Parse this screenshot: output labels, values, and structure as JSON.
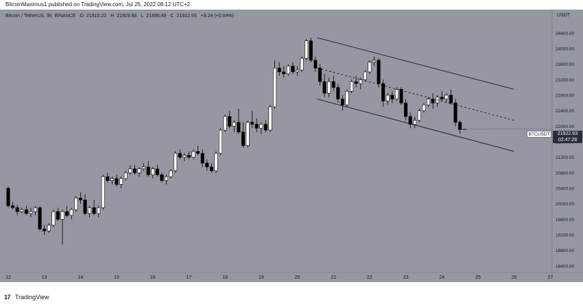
{
  "header": {
    "publish_text": "BitcoinMaximus1 published on TradingView.com, Jul 25, 2022 08:12 UTC+2"
  },
  "symbol_info": {
    "name": "Bitcoin / TetherUS, 3h, BINANCE",
    "open": "21915.22",
    "high": "21929.86",
    "low": "21895.49",
    "close": "21922.93",
    "change": "+9.24 (+0.04%)"
  },
  "price_axis": {
    "currency": "USDT",
    "last_price": "21922.93",
    "countdown": "02:47:28",
    "symbol_tag": "BTCUSDT"
  },
  "footer": {
    "logo_text": "17",
    "brand": "TradingView"
  },
  "chart_data": {
    "type": "candlestick",
    "x_ticks": [
      "12",
      "13",
      "14",
      "15",
      "16",
      "17",
      "18",
      "19",
      "20",
      "21",
      "22",
      "23",
      "24",
      "25",
      "26",
      "27"
    ],
    "y_ticks": [
      18400,
      18800,
      19200,
      19600,
      20000,
      20400,
      20800,
      21200,
      21600,
      22000,
      22400,
      22800,
      23200,
      23600,
      24000,
      24400
    ],
    "ylim": [
      18300,
      24900
    ],
    "xlim": [
      12,
      27.05
    ],
    "candles": [
      {
        "t": 12.0,
        "o": 20400,
        "h": 20450,
        "l": 19900,
        "c": 19950
      },
      {
        "t": 12.125,
        "o": 19950,
        "h": 20050,
        "l": 19850,
        "c": 19900
      },
      {
        "t": 12.25,
        "o": 19900,
        "h": 19980,
        "l": 19700,
        "c": 19800
      },
      {
        "t": 12.375,
        "o": 19800,
        "h": 19900,
        "l": 19750,
        "c": 19850
      },
      {
        "t": 12.5,
        "o": 19850,
        "h": 19950,
        "l": 19720,
        "c": 19750
      },
      {
        "t": 12.625,
        "o": 19750,
        "h": 19900,
        "l": 19650,
        "c": 19800
      },
      {
        "t": 12.75,
        "o": 19800,
        "h": 19950,
        "l": 19700,
        "c": 19900
      },
      {
        "t": 12.875,
        "o": 19900,
        "h": 19950,
        "l": 19300,
        "c": 19350
      },
      {
        "t": 13.0,
        "o": 19350,
        "h": 19450,
        "l": 19200,
        "c": 19300
      },
      {
        "t": 13.125,
        "o": 19300,
        "h": 19500,
        "l": 19250,
        "c": 19450
      },
      {
        "t": 13.25,
        "o": 19450,
        "h": 19850,
        "l": 19400,
        "c": 19800
      },
      {
        "t": 13.375,
        "o": 19800,
        "h": 19900,
        "l": 19550,
        "c": 19600
      },
      {
        "t": 13.5,
        "o": 19600,
        "h": 19850,
        "l": 18950,
        "c": 19800
      },
      {
        "t": 13.625,
        "o": 19800,
        "h": 19950,
        "l": 19650,
        "c": 19700
      },
      {
        "t": 13.75,
        "o": 19700,
        "h": 19900,
        "l": 19600,
        "c": 19850
      },
      {
        "t": 13.875,
        "o": 19850,
        "h": 20200,
        "l": 19800,
        "c": 20150
      },
      {
        "t": 14.0,
        "o": 20150,
        "h": 20300,
        "l": 20000,
        "c": 20100
      },
      {
        "t": 14.125,
        "o": 20100,
        "h": 20250,
        "l": 19700,
        "c": 19750
      },
      {
        "t": 14.25,
        "o": 19750,
        "h": 19950,
        "l": 19650,
        "c": 19900
      },
      {
        "t": 14.375,
        "o": 19900,
        "h": 20100,
        "l": 19700,
        "c": 19750
      },
      {
        "t": 14.5,
        "o": 19750,
        "h": 19950,
        "l": 19650,
        "c": 19900
      },
      {
        "t": 14.625,
        "o": 19900,
        "h": 20750,
        "l": 19850,
        "c": 20700
      },
      {
        "t": 14.75,
        "o": 20700,
        "h": 20800,
        "l": 20550,
        "c": 20600
      },
      {
        "t": 14.875,
        "o": 20600,
        "h": 20700,
        "l": 20500,
        "c": 20650
      },
      {
        "t": 15.0,
        "o": 20650,
        "h": 20750,
        "l": 20450,
        "c": 20500
      },
      {
        "t": 15.125,
        "o": 20500,
        "h": 20700,
        "l": 20400,
        "c": 20650
      },
      {
        "t": 15.25,
        "o": 20650,
        "h": 20850,
        "l": 20600,
        "c": 20800
      },
      {
        "t": 15.375,
        "o": 20800,
        "h": 21000,
        "l": 20750,
        "c": 20900
      },
      {
        "t": 15.5,
        "o": 20900,
        "h": 21000,
        "l": 20750,
        "c": 20800
      },
      {
        "t": 15.625,
        "o": 20800,
        "h": 20950,
        "l": 20700,
        "c": 20900
      },
      {
        "t": 15.75,
        "o": 20900,
        "h": 21050,
        "l": 20850,
        "c": 20950
      },
      {
        "t": 15.875,
        "o": 20950,
        "h": 21100,
        "l": 20700,
        "c": 20750
      },
      {
        "t": 16.0,
        "o": 20750,
        "h": 20950,
        "l": 20650,
        "c": 20900
      },
      {
        "t": 16.125,
        "o": 20900,
        "h": 21000,
        "l": 20700,
        "c": 20750
      },
      {
        "t": 16.25,
        "o": 20750,
        "h": 20800,
        "l": 20550,
        "c": 20600
      },
      {
        "t": 16.375,
        "o": 20600,
        "h": 20750,
        "l": 20500,
        "c": 20700
      },
      {
        "t": 16.5,
        "o": 20700,
        "h": 20900,
        "l": 20650,
        "c": 20850
      },
      {
        "t": 16.625,
        "o": 20850,
        "h": 21350,
        "l": 20800,
        "c": 21300
      },
      {
        "t": 16.75,
        "o": 21300,
        "h": 21400,
        "l": 21150,
        "c": 21200
      },
      {
        "t": 16.875,
        "o": 21200,
        "h": 21300,
        "l": 21100,
        "c": 21250
      },
      {
        "t": 17.0,
        "o": 21250,
        "h": 21350,
        "l": 21150,
        "c": 21200
      },
      {
        "t": 17.125,
        "o": 21200,
        "h": 21400,
        "l": 21150,
        "c": 21350
      },
      {
        "t": 17.25,
        "o": 21350,
        "h": 21500,
        "l": 21250,
        "c": 21300
      },
      {
        "t": 17.375,
        "o": 21300,
        "h": 21400,
        "l": 20950,
        "c": 21050
      },
      {
        "t": 17.5,
        "o": 21050,
        "h": 21150,
        "l": 20850,
        "c": 20950
      },
      {
        "t": 17.625,
        "o": 20950,
        "h": 21050,
        "l": 20800,
        "c": 20850
      },
      {
        "t": 17.75,
        "o": 20850,
        "h": 21350,
        "l": 20800,
        "c": 21300
      },
      {
        "t": 17.875,
        "o": 21300,
        "h": 21950,
        "l": 21250,
        "c": 21900
      },
      {
        "t": 18.0,
        "o": 21900,
        "h": 22300,
        "l": 21850,
        "c": 22250
      },
      {
        "t": 18.125,
        "o": 22250,
        "h": 22400,
        "l": 21950,
        "c": 22000
      },
      {
        "t": 18.25,
        "o": 22000,
        "h": 22150,
        "l": 21850,
        "c": 22100
      },
      {
        "t": 18.375,
        "o": 22100,
        "h": 22450,
        "l": 21800,
        "c": 21850
      },
      {
        "t": 18.5,
        "o": 21850,
        "h": 22100,
        "l": 21450,
        "c": 21500
      },
      {
        "t": 18.625,
        "o": 21500,
        "h": 22150,
        "l": 21450,
        "c": 22100
      },
      {
        "t": 18.75,
        "o": 22100,
        "h": 22400,
        "l": 21950,
        "c": 22050
      },
      {
        "t": 18.875,
        "o": 22050,
        "h": 22200,
        "l": 21850,
        "c": 21950
      },
      {
        "t": 19.0,
        "o": 21950,
        "h": 22100,
        "l": 21800,
        "c": 22050
      },
      {
        "t": 19.125,
        "o": 22050,
        "h": 22150,
        "l": 21850,
        "c": 21900
      },
      {
        "t": 19.25,
        "o": 21900,
        "h": 22550,
        "l": 21850,
        "c": 22500
      },
      {
        "t": 19.375,
        "o": 22500,
        "h": 23700,
        "l": 22450,
        "c": 23500
      },
      {
        "t": 19.5,
        "o": 23500,
        "h": 23650,
        "l": 23300,
        "c": 23400
      },
      {
        "t": 19.625,
        "o": 23400,
        "h": 23550,
        "l": 23250,
        "c": 23350
      },
      {
        "t": 19.75,
        "o": 23350,
        "h": 23600,
        "l": 23300,
        "c": 23550
      },
      {
        "t": 19.875,
        "o": 23550,
        "h": 23650,
        "l": 23350,
        "c": 23400
      },
      {
        "t": 20.0,
        "o": 23400,
        "h": 23550,
        "l": 23300,
        "c": 23450
      },
      {
        "t": 20.125,
        "o": 23450,
        "h": 23800,
        "l": 23400,
        "c": 23750
      },
      {
        "t": 20.25,
        "o": 23750,
        "h": 24250,
        "l": 23700,
        "c": 24200
      },
      {
        "t": 20.375,
        "o": 24200,
        "h": 24280,
        "l": 23650,
        "c": 23700
      },
      {
        "t": 20.5,
        "o": 23700,
        "h": 23800,
        "l": 23400,
        "c": 23500
      },
      {
        "t": 20.625,
        "o": 23500,
        "h": 23600,
        "l": 23050,
        "c": 23150
      },
      {
        "t": 20.75,
        "o": 23150,
        "h": 23350,
        "l": 22750,
        "c": 22850
      },
      {
        "t": 20.875,
        "o": 22850,
        "h": 23250,
        "l": 22750,
        "c": 23150
      },
      {
        "t": 21.0,
        "o": 23150,
        "h": 23300,
        "l": 22900,
        "c": 23000
      },
      {
        "t": 21.125,
        "o": 23000,
        "h": 23100,
        "l": 22600,
        "c": 22700
      },
      {
        "t": 21.25,
        "o": 22700,
        "h": 22800,
        "l": 22400,
        "c": 22550
      },
      {
        "t": 21.375,
        "o": 22550,
        "h": 22950,
        "l": 22500,
        "c": 22900
      },
      {
        "t": 21.5,
        "o": 22900,
        "h": 23200,
        "l": 22850,
        "c": 23150
      },
      {
        "t": 21.625,
        "o": 23150,
        "h": 23300,
        "l": 23000,
        "c": 23100
      },
      {
        "t": 21.75,
        "o": 23100,
        "h": 23250,
        "l": 22950,
        "c": 23200
      },
      {
        "t": 21.875,
        "o": 23200,
        "h": 23450,
        "l": 23150,
        "c": 23400
      },
      {
        "t": 22.0,
        "o": 23400,
        "h": 23700,
        "l": 23350,
        "c": 23650
      },
      {
        "t": 22.125,
        "o": 23650,
        "h": 23800,
        "l": 23550,
        "c": 23700
      },
      {
        "t": 22.25,
        "o": 23700,
        "h": 23750,
        "l": 23000,
        "c": 23100
      },
      {
        "t": 22.375,
        "o": 23100,
        "h": 23200,
        "l": 22500,
        "c": 22650
      },
      {
        "t": 22.5,
        "o": 22650,
        "h": 22850,
        "l": 22550,
        "c": 22800
      },
      {
        "t": 22.625,
        "o": 22800,
        "h": 22900,
        "l": 22600,
        "c": 22700
      },
      {
        "t": 22.75,
        "o": 22700,
        "h": 23000,
        "l": 22650,
        "c": 22950
      },
      {
        "t": 22.875,
        "o": 22950,
        "h": 23000,
        "l": 22550,
        "c": 22600
      },
      {
        "t": 23.0,
        "o": 22600,
        "h": 22700,
        "l": 22150,
        "c": 22250
      },
      {
        "t": 23.125,
        "o": 22250,
        "h": 22350,
        "l": 21950,
        "c": 22050
      },
      {
        "t": 23.25,
        "o": 22050,
        "h": 22250,
        "l": 21950,
        "c": 22150
      },
      {
        "t": 23.375,
        "o": 22150,
        "h": 22450,
        "l": 22100,
        "c": 22400
      },
      {
        "t": 23.5,
        "o": 22400,
        "h": 22600,
        "l": 22350,
        "c": 22550
      },
      {
        "t": 23.625,
        "o": 22550,
        "h": 22750,
        "l": 22500,
        "c": 22700
      },
      {
        "t": 23.75,
        "o": 22700,
        "h": 22850,
        "l": 22450,
        "c": 22600
      },
      {
        "t": 23.875,
        "o": 22600,
        "h": 22800,
        "l": 22500,
        "c": 22750
      },
      {
        "t": 24.0,
        "o": 22750,
        "h": 22900,
        "l": 22650,
        "c": 22700
      },
      {
        "t": 24.125,
        "o": 22700,
        "h": 22850,
        "l": 22600,
        "c": 22800
      },
      {
        "t": 24.25,
        "o": 22800,
        "h": 22950,
        "l": 22550,
        "c": 22600
      },
      {
        "t": 24.375,
        "o": 22600,
        "h": 22700,
        "l": 22000,
        "c": 22100
      },
      {
        "t": 24.5,
        "o": 22100,
        "h": 22150,
        "l": 21800,
        "c": 21913
      },
      {
        "t": 24.625,
        "o": 21915.22,
        "h": 21929.86,
        "l": 21895.49,
        "c": 21922.93
      }
    ],
    "trendlines": [
      {
        "style": "solid",
        "from": [
          20.55,
          24280
        ],
        "to": [
          26.0,
          22950
        ]
      },
      {
        "style": "solid",
        "from": [
          20.55,
          22700
        ],
        "to": [
          26.0,
          21350
        ]
      },
      {
        "style": "dashed",
        "from": [
          20.55,
          23500
        ],
        "to": [
          26.0,
          22150
        ]
      }
    ],
    "colors": {
      "background": "#9598a1",
      "up_candle": "#ffffff",
      "down_candle": "#000000",
      "wick": "#000000",
      "trendline": "#131722"
    }
  }
}
